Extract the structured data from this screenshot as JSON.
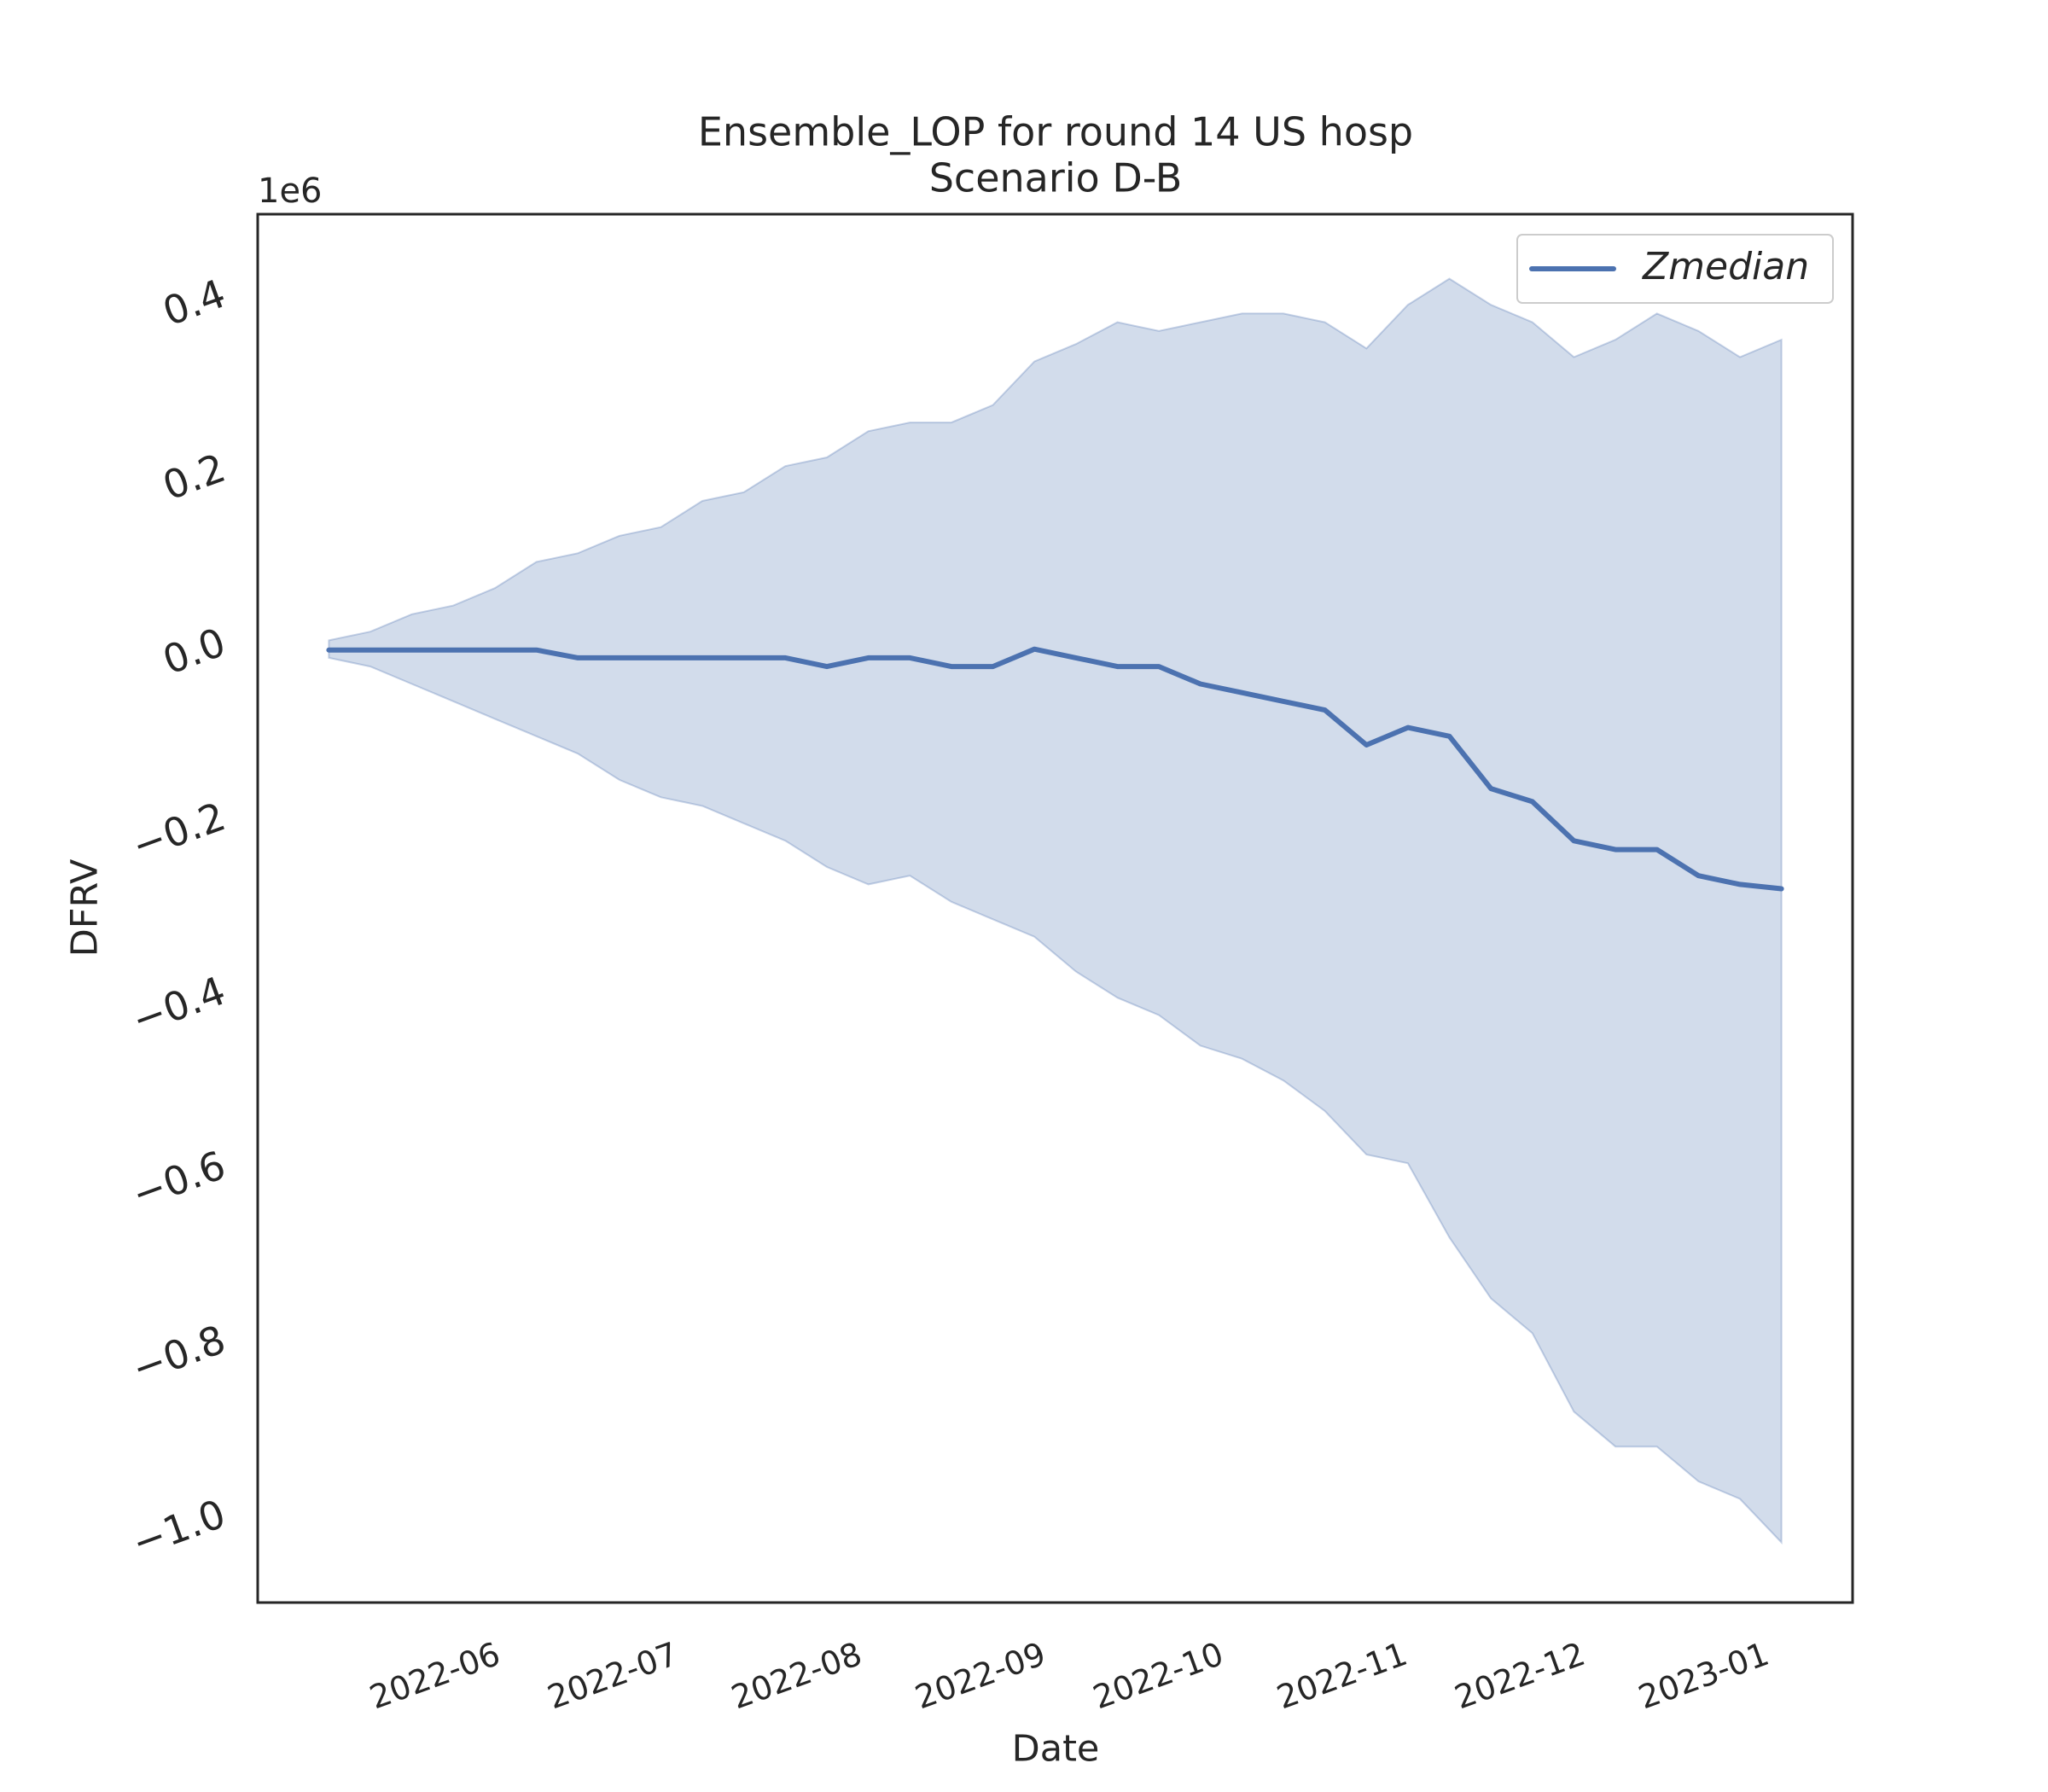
{
  "chart_data": {
    "type": "line",
    "title": "Ensemble_LOP for round 14 US hosp",
    "subtitle": "Scenario D-B",
    "x_label": "Date",
    "y_label": "DFRV",
    "y_offset_label": "1e6",
    "x": [
      "2022-05-14",
      "2022-05-21",
      "2022-05-28",
      "2022-06-04",
      "2022-06-11",
      "2022-06-18",
      "2022-06-25",
      "2022-07-02",
      "2022-07-09",
      "2022-07-16",
      "2022-07-23",
      "2022-07-30",
      "2022-08-06",
      "2022-08-13",
      "2022-08-20",
      "2022-08-27",
      "2022-09-03",
      "2022-09-10",
      "2022-09-17",
      "2022-09-24",
      "2022-10-01",
      "2022-10-08",
      "2022-10-15",
      "2022-10-22",
      "2022-10-29",
      "2022-11-05",
      "2022-11-12",
      "2022-11-19",
      "2022-11-26",
      "2022-12-03",
      "2022-12-10",
      "2022-12-17",
      "2022-12-24",
      "2022-12-31",
      "2023-01-07",
      "2023-01-14"
    ],
    "series": [
      {
        "name": "Zmedian",
        "color": "#4c72b0",
        "values": [
          0.009,
          0.009,
          0.009,
          0.009,
          0.009,
          0.009,
          0,
          0,
          0,
          0,
          0,
          0,
          -0.01,
          0,
          0,
          -0.01,
          -0.01,
          0.01,
          0,
          -0.01,
          -0.01,
          -0.03,
          -0.04,
          -0.05,
          -0.06,
          -0.1,
          -0.08,
          -0.09,
          -0.15,
          -0.165,
          -0.21,
          -0.22,
          -0.22,
          -0.25,
          -0.26,
          -0.265
        ]
      }
    ],
    "interval": {
      "color": "#4c72b0",
      "upper": [
        0.02,
        0.03,
        0.05,
        0.06,
        0.08,
        0.11,
        0.12,
        0.14,
        0.15,
        0.18,
        0.19,
        0.22,
        0.23,
        0.26,
        0.27,
        0.27,
        0.29,
        0.34,
        0.36,
        0.385,
        0.375,
        0.385,
        0.395,
        0.395,
        0.385,
        0.355,
        0.405,
        0.435,
        0.405,
        0.385,
        0.345,
        0.365,
        0.395,
        0.375,
        0.345,
        0.365
      ],
      "lower": [
        0,
        -0.01,
        -0.03,
        -0.05,
        -0.07,
        -0.09,
        -0.11,
        -0.14,
        -0.16,
        -0.17,
        -0.19,
        -0.21,
        -0.24,
        -0.26,
        -0.25,
        -0.28,
        -0.3,
        -0.32,
        -0.36,
        -0.39,
        -0.41,
        -0.445,
        -0.46,
        -0.485,
        -0.52,
        -0.57,
        -0.58,
        -0.665,
        -0.735,
        -0.775,
        -0.865,
        -0.905,
        -0.905,
        -0.945,
        -0.965,
        -1.015
      ]
    },
    "xlim": [
      "2022-05-02",
      "2023-01-26"
    ],
    "xticks": [
      {
        "value": "2022-06-01",
        "label": "2022-06"
      },
      {
        "value": "2022-07-01",
        "label": "2022-07"
      },
      {
        "value": "2022-08-01",
        "label": "2022-08"
      },
      {
        "value": "2022-09-01",
        "label": "2022-09"
      },
      {
        "value": "2022-10-01",
        "label": "2022-10"
      },
      {
        "value": "2022-11-01",
        "label": "2022-11"
      },
      {
        "value": "2022-12-01",
        "label": "2022-12"
      },
      {
        "value": "2023-01-01",
        "label": "2023-01"
      }
    ],
    "ylim": [
      -1.084,
      0.509
    ],
    "yticks": [
      {
        "value": -1,
        "label": "−1.0"
      },
      {
        "value": -0.8,
        "label": "−0.8"
      },
      {
        "value": -0.6,
        "label": "−0.6"
      },
      {
        "value": -0.4,
        "label": "−0.4"
      },
      {
        "value": -0.2,
        "label": "−0.2"
      },
      {
        "value": 0,
        "label": "0.0"
      },
      0.2,
      0.4
    ],
    "grid": false,
    "legend_position": "upper right"
  }
}
